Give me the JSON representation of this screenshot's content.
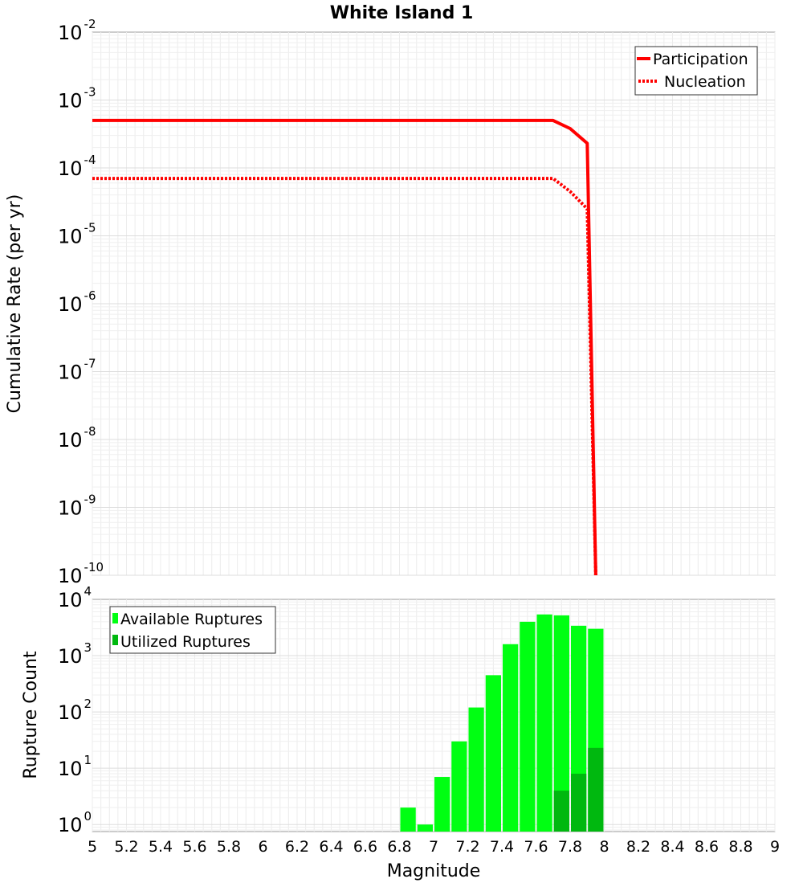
{
  "title": "White Island 1",
  "chart_data": [
    {
      "type": "line",
      "title": "White Island 1",
      "xlabel": "",
      "ylabel": "Cumulative Rate (per yr)",
      "xlim": [
        5,
        9
      ],
      "ylim": [
        1e-10,
        0.01
      ],
      "yscale": "log",
      "grid": true,
      "legend_position": "top-right",
      "y_tick_exponents": [
        -2,
        -3,
        -4,
        -5,
        -6,
        -7,
        -8,
        -9,
        -10
      ],
      "y_tick_base": "10",
      "series": [
        {
          "name": "Participation",
          "style": "solid",
          "color": "#ff0000",
          "x": [
            5.0,
            7.7,
            7.8,
            7.9,
            7.95
          ],
          "y": [
            0.0005,
            0.0005,
            0.00038,
            0.00023,
            1e-10
          ]
        },
        {
          "name": "Nucleation",
          "style": "dotted",
          "color": "#ff0000",
          "x": [
            5.0,
            7.7,
            7.8,
            7.9,
            7.95
          ],
          "y": [
            7e-05,
            7e-05,
            4.5e-05,
            2.5e-05,
            1e-10
          ]
        }
      ]
    },
    {
      "type": "bar",
      "xlabel": "Magnitude",
      "ylabel": "Rupture Count",
      "xlim": [
        5,
        9
      ],
      "ylim": [
        0.75,
        10000
      ],
      "yscale": "log",
      "grid": true,
      "legend_position": "top-left",
      "x_ticks": [
        "5",
        "5.2",
        "5.4",
        "5.6",
        "5.8",
        "6",
        "6.2",
        "6.4",
        "6.6",
        "6.8",
        "7",
        "7.2",
        "7.4",
        "7.6",
        "7.8",
        "8",
        "8.2",
        "8.4",
        "8.6",
        "8.8",
        "9"
      ],
      "y_tick_exponents": [
        0,
        1,
        2,
        3,
        4
      ],
      "y_tick_base": "10",
      "bin_centers": [
        6.85,
        6.95,
        7.05,
        7.15,
        7.25,
        7.35,
        7.45,
        7.55,
        7.65,
        7.75,
        7.85,
        7.95
      ],
      "bin_width": 0.1,
      "series": [
        {
          "name": "Available Ruptures",
          "color": "#00ff12",
          "values": [
            2,
            1,
            7,
            30,
            120,
            450,
            1600,
            4000,
            5400,
            5200,
            3400,
            3000
          ]
        },
        {
          "name": "Utilized Ruptures",
          "color": "#00b80f",
          "values": [
            0,
            0,
            0,
            0,
            0,
            0,
            0,
            0,
            0,
            4,
            8,
            23
          ]
        }
      ]
    }
  ]
}
